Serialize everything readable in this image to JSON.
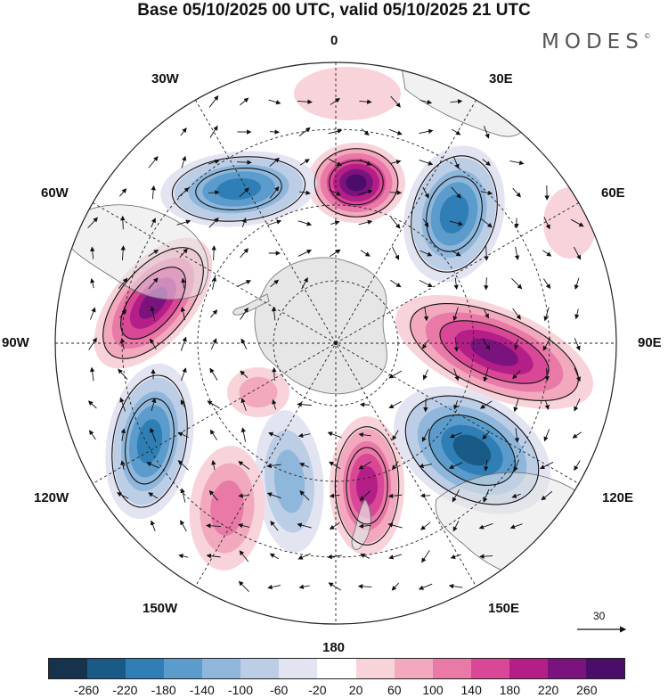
{
  "title": "Base 05/10/2025 00 UTC, valid 05/10/2025 21 UTC",
  "brand": "MODES",
  "brand_mark": "©",
  "longitude_labels": {
    "top": "0",
    "bottom": "180",
    "left": "90W",
    "right": "90E",
    "upper_left": "30W",
    "upper_right": "30E",
    "mid_upper_left": "60W",
    "mid_upper_right": "60E",
    "mid_lower_left": "120W",
    "mid_lower_right": "120E",
    "lower_left": "150W",
    "lower_right": "150E"
  },
  "vector_reference": "30",
  "colorbar": {
    "ticks": [
      "-260",
      "-220",
      "-180",
      "-140",
      "-100",
      "-60",
      "-20",
      "20",
      "60",
      "100",
      "140",
      "180",
      "220",
      "260"
    ],
    "colors": [
      "#17324d",
      "#1a5a87",
      "#2f7fb6",
      "#5b9ccc",
      "#8fb7db",
      "#bccde6",
      "#e3e4f1",
      "#ffffff",
      "#f8d3da",
      "#f2a9be",
      "#e97aa8",
      "#d84896",
      "#b41f87",
      "#7b137e",
      "#4b0d6a"
    ]
  },
  "colors": {
    "neg_strong": "#2a6fa8",
    "pos_strong": "#b41f87",
    "land": "#e6e6e6"
  }
}
